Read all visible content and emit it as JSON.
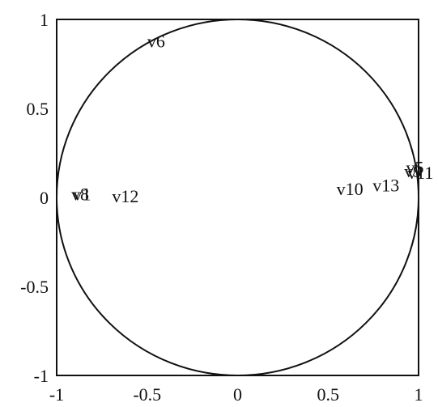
{
  "chart_data": {
    "type": "scatter",
    "title": "",
    "xlabel": "",
    "ylabel": "",
    "xlim": [
      -1,
      1
    ],
    "ylim": [
      -1,
      1
    ],
    "grid": false,
    "xticks": [
      "-1",
      "-0.5",
      "0",
      "0.5",
      "1"
    ],
    "yticks": [
      "1",
      "0.5",
      "0",
      "-0.5",
      "-1"
    ],
    "circle": {
      "cx": 0,
      "cy": 0,
      "r": 1
    },
    "points": [
      {
        "label": "v6",
        "x": -0.45,
        "y": 0.88
      },
      {
        "label": "v8",
        "x": -0.87,
        "y": 0.02
      },
      {
        "label": "v1",
        "x": -0.86,
        "y": 0.02
      },
      {
        "label": "v12",
        "x": -0.62,
        "y": 0.01
      },
      {
        "label": "v10",
        "x": 0.62,
        "y": 0.05
      },
      {
        "label": "v13",
        "x": 0.82,
        "y": 0.07
      },
      {
        "label": "v11",
        "x": 1.01,
        "y": 0.14
      },
      {
        "label": "v9",
        "x": 0.97,
        "y": 0.15
      },
      {
        "label": "v5",
        "x": 0.98,
        "y": 0.17
      }
    ]
  }
}
